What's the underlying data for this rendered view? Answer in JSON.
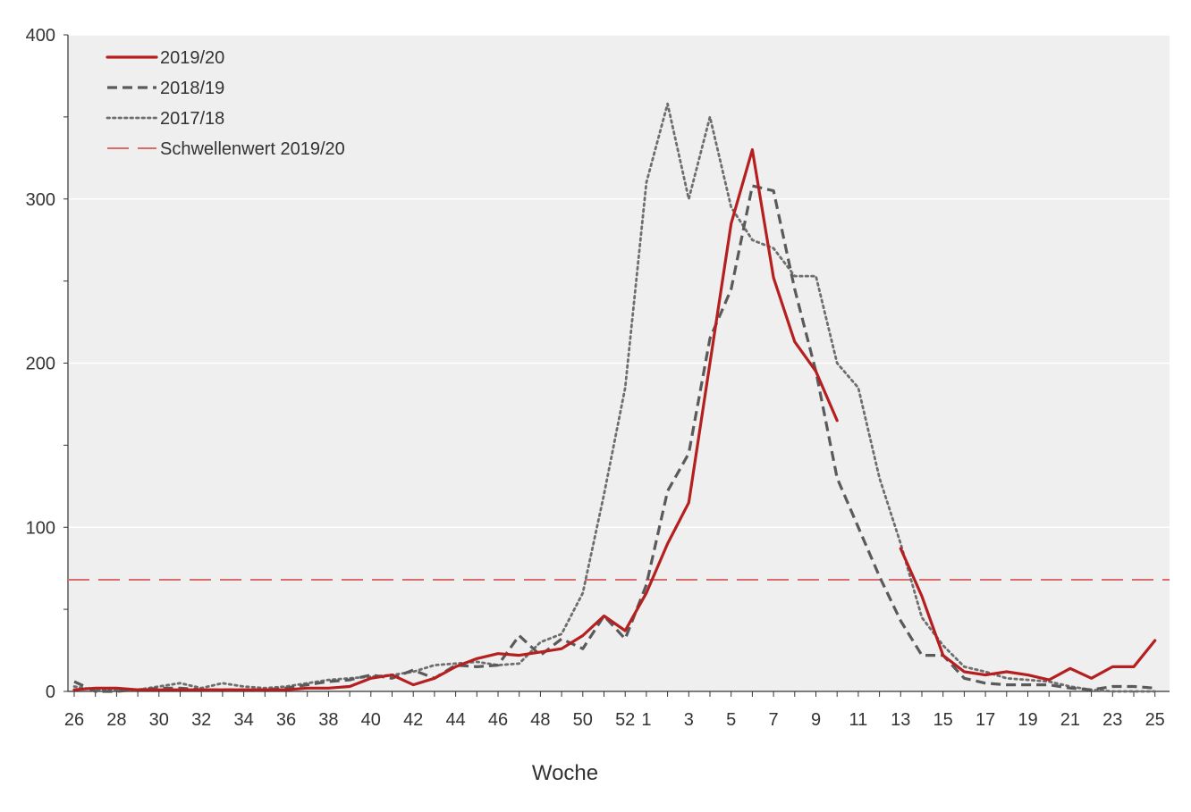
{
  "chart_data": {
    "type": "line",
    "xlabel": "Woche",
    "ylim": [
      0,
      400
    ],
    "y_ticks": [
      0,
      100,
      200,
      300,
      400
    ],
    "y_tick_labels": [
      "0",
      "100",
      "200",
      "300",
      "400"
    ],
    "x_tick_labels": [
      "26",
      "28",
      "30",
      "32",
      "34",
      "36",
      "38",
      "40",
      "42",
      "44",
      "46",
      "48",
      "50",
      "52",
      "1",
      "3",
      "5",
      "7",
      "9",
      "11",
      "13",
      "15",
      "17",
      "19",
      "21",
      "23",
      "25"
    ],
    "x_weeks": [
      "26",
      "27",
      "28",
      "29",
      "30",
      "31",
      "32",
      "33",
      "34",
      "35",
      "36",
      "37",
      "38",
      "39",
      "40",
      "41",
      "42",
      "43",
      "44",
      "45",
      "46",
      "47",
      "48",
      "49",
      "50",
      "51",
      "52",
      "1",
      "2",
      "3",
      "4",
      "5",
      "6",
      "7",
      "8",
      "9",
      "10",
      "11",
      "12",
      "13",
      "14",
      "15",
      "16",
      "17",
      "18",
      "19",
      "20",
      "21",
      "22",
      "23",
      "24",
      "25"
    ],
    "grid": "horizontal",
    "background": "#efefef",
    "legend_position": "top-left",
    "series": [
      {
        "name": "2019/20",
        "style": "solid",
        "color": "#b51f1f",
        "values": [
          1,
          2,
          2,
          1,
          1,
          1,
          1,
          1,
          1,
          1,
          1,
          2,
          2,
          3,
          8,
          10,
          4,
          8,
          15,
          20,
          23,
          22,
          24,
          26,
          34,
          46,
          37,
          60,
          90,
          115,
          200,
          285,
          330,
          252,
          213,
          195,
          165,
          null,
          null,
          87,
          58,
          22,
          12,
          10,
          12,
          10,
          7,
          14,
          8,
          15,
          15,
          31
        ]
      },
      {
        "name": "2018/19",
        "style": "dashed",
        "color": "#5a5a5a",
        "values": [
          6,
          0,
          0,
          1,
          2,
          2,
          1,
          1,
          1,
          1,
          2,
          4,
          6,
          7,
          10,
          8,
          13,
          8,
          16,
          15,
          16,
          34,
          22,
          32,
          26,
          46,
          32,
          65,
          122,
          145,
          215,
          245,
          308,
          305,
          245,
          195,
          130,
          100,
          70,
          43,
          22,
          22,
          8,
          5,
          4,
          4,
          4,
          2,
          1,
          3,
          3,
          2
        ]
      },
      {
        "name": "2017/18",
        "style": "dotted",
        "color": "#6e6e6e",
        "values": [
          3,
          1,
          1,
          1,
          3,
          5,
          2,
          5,
          3,
          2,
          3,
          5,
          7,
          8,
          9,
          10,
          12,
          16,
          17,
          18,
          16,
          17,
          30,
          35,
          60,
          120,
          185,
          310,
          358,
          300,
          350,
          295,
          275,
          270,
          253,
          253,
          200,
          185,
          130,
          90,
          45,
          28,
          15,
          12,
          8,
          7,
          6,
          3,
          1,
          0,
          0,
          0
        ]
      },
      {
        "name": "Schwellenwert 2019/20",
        "style": "longdash",
        "color": "#d96b6b",
        "constant": 68
      }
    ]
  }
}
